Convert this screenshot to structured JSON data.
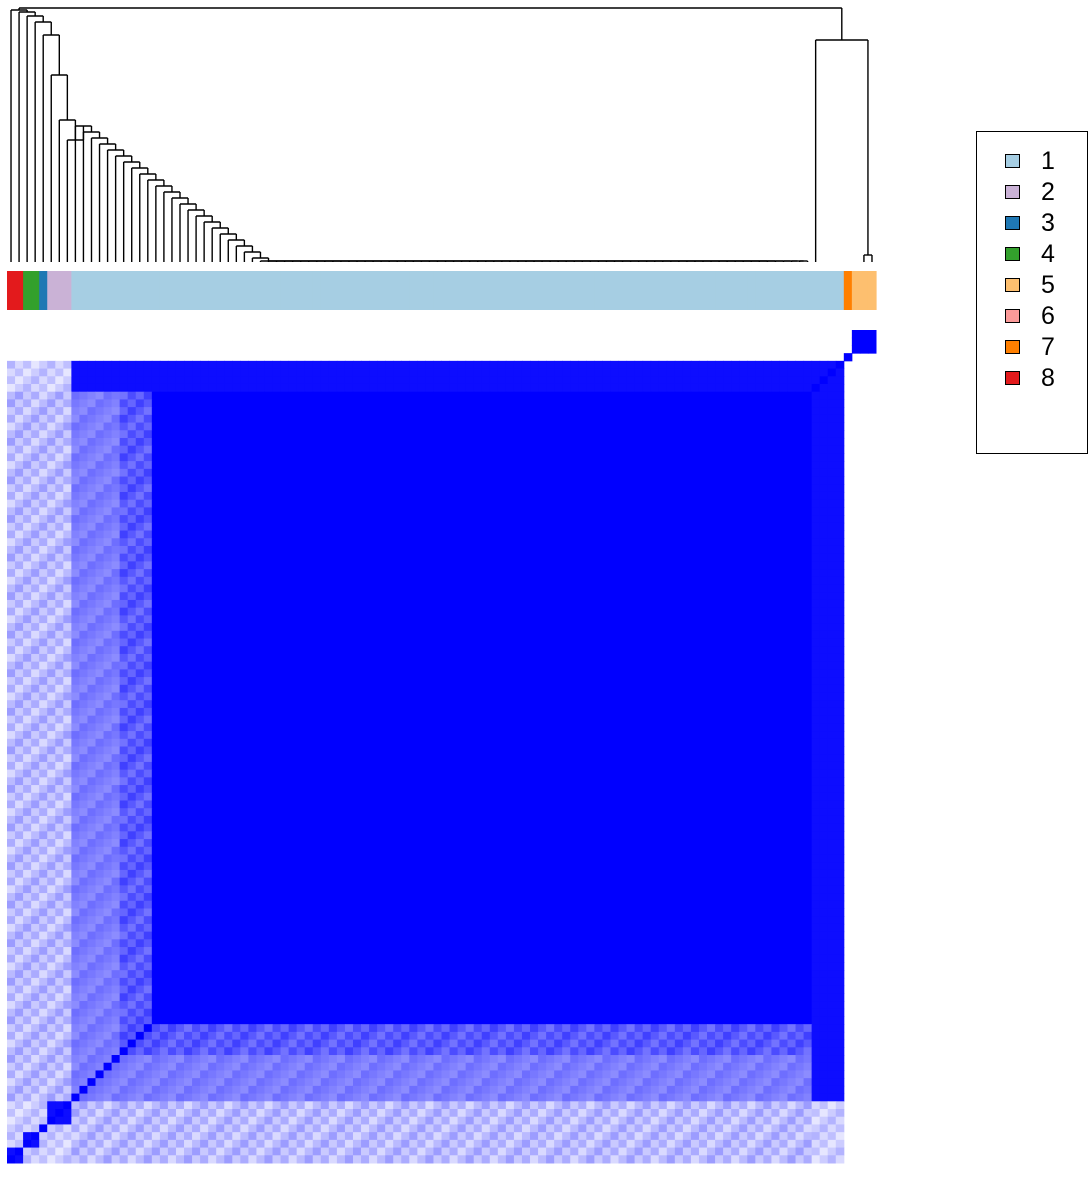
{
  "chart_data": {
    "type": "heatmap",
    "title": "",
    "xlabel": "",
    "ylabel": "",
    "description_kind": "consensus matrix with dendrogram and cluster annotation bar",
    "color_low": "#ffffff",
    "color_high": "#0000ff",
    "n_samples": 108,
    "cluster_order": [
      8,
      8,
      4,
      4,
      3,
      2,
      2,
      1,
      7,
      5,
      5,
      5
    ],
    "cluster_sizes": [
      2,
      2,
      1,
      2,
      85,
      1,
      3
    ],
    "legend": {
      "placement": "right",
      "entries": [
        {
          "label": "1",
          "color": "#a6cee3"
        },
        {
          "label": "2",
          "color": "#cab2d6"
        },
        {
          "label": "3",
          "color": "#1f78b4"
        },
        {
          "label": "4",
          "color": "#33a02c"
        },
        {
          "label": "5",
          "color": "#fdbf6f"
        },
        {
          "label": "6",
          "color": "#fb9a99"
        },
        {
          "label": "7",
          "color": "#ff7f00"
        },
        {
          "label": "8",
          "color": "#e31a1c"
        }
      ]
    }
  }
}
